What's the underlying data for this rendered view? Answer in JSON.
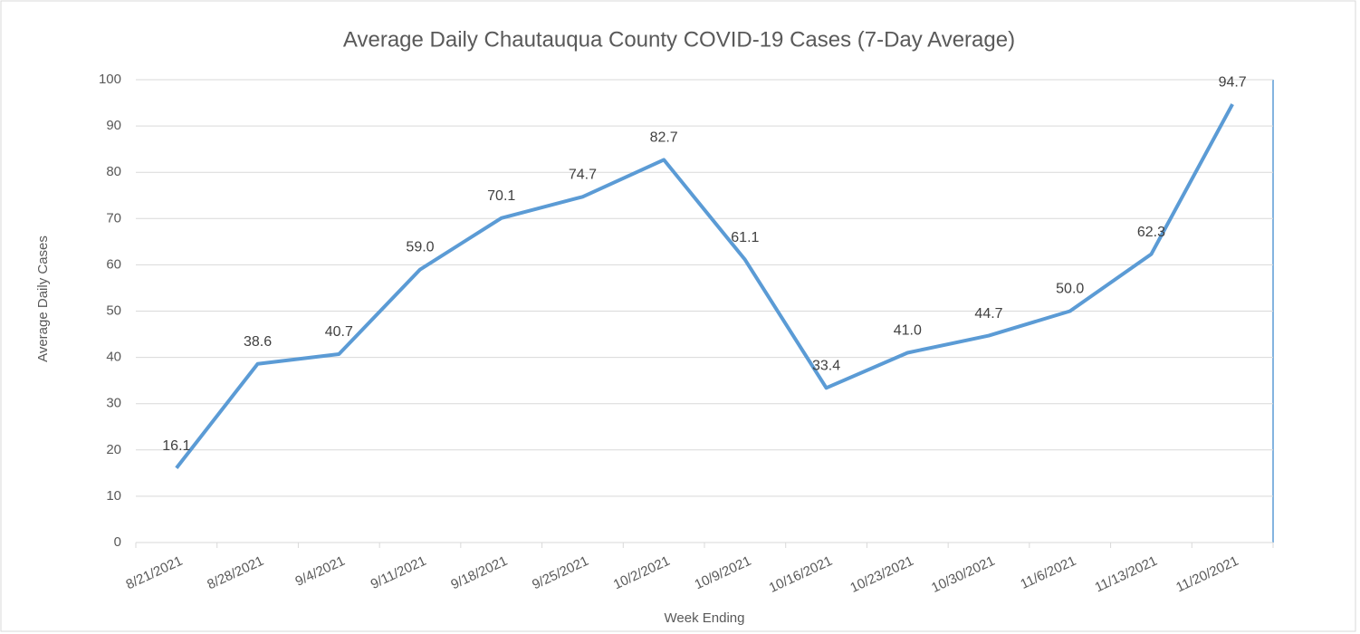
{
  "chart_data": {
    "type": "line",
    "title": "Average Daily Chautauqua County COVID-19 Cases (7-Day Average)",
    "x_label": "Week Ending",
    "y_label": "Average Daily Cases",
    "categories": [
      "8/21/2021",
      "8/28/2021",
      "9/4/2021",
      "9/11/2021",
      "9/18/2021",
      "9/25/2021",
      "10/2/2021",
      "10/9/2021",
      "10/16/2021",
      "10/23/2021",
      "10/30/2021",
      "11/6/2021",
      "11/13/2021",
      "11/20/2021"
    ],
    "series": [
      {
        "name": "Average Daily Cases",
        "color": "#5b9bd5",
        "values": [
          16.1,
          38.6,
          40.7,
          59.0,
          70.1,
          74.7,
          82.7,
          61.1,
          33.4,
          41.0,
          44.7,
          50.0,
          62.3,
          94.7
        ],
        "value_labels": [
          "16.1",
          "38.6",
          "40.7",
          "59.0",
          "70.1",
          "74.7",
          "82.7",
          "61.1",
          "33.4",
          "41.0",
          "44.7",
          "50.0",
          "62.3",
          "94.7"
        ]
      }
    ],
    "ylim": [
      0,
      100
    ],
    "yticks": [
      0,
      10,
      20,
      30,
      40,
      50,
      60,
      70,
      80,
      90,
      100
    ],
    "grid": true
  }
}
